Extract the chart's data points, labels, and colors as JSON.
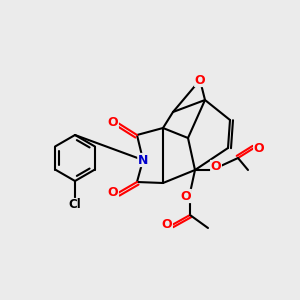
{
  "bg_color": "#ebebeb",
  "bond_color": "#000000",
  "bond_width": 1.5,
  "atom_colors": {
    "O": "#ff0000",
    "N": "#0000cc",
    "Cl": "#000000",
    "C": "#000000"
  },
  "fig_size": [
    3.0,
    3.0
  ],
  "dpi": 100
}
